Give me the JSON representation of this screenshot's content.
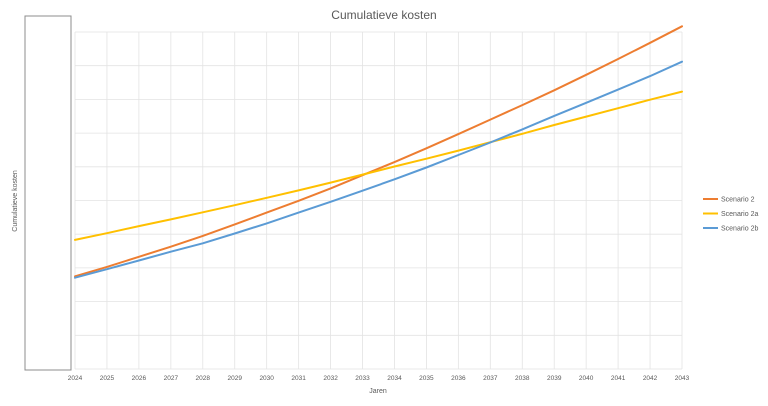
{
  "chart_data": {
    "type": "line",
    "title": "Cumulatieve kosten",
    "xlabel": "Jaren",
    "ylabel": "Cumulatieve kosten",
    "x": [
      2024,
      2025,
      2026,
      2027,
      2028,
      2029,
      2030,
      2031,
      2032,
      2033,
      2034,
      2035,
      2036,
      2037,
      2038,
      2039,
      2040,
      2041,
      2042,
      2043
    ],
    "ylim": [
      0,
      100
    ],
    "grid": true,
    "legend_position": "right",
    "series": [
      {
        "name": "Scenario 2",
        "color": "#ED7D31",
        "values": [
          27.5,
          30.3,
          33.3,
          36.3,
          39.5,
          42.9,
          46.4,
          49.9,
          53.6,
          57.5,
          61.4,
          65.5,
          69.7,
          74.0,
          78.3,
          82.7,
          87.3,
          92.0,
          96.8,
          101.7
        ]
      },
      {
        "name": "Scenario 2a",
        "color": "#FFC000",
        "values": [
          38.3,
          40.3,
          42.4,
          44.4,
          46.5,
          48.6,
          50.8,
          53.0,
          55.3,
          57.7,
          60.1,
          62.4,
          64.8,
          67.3,
          69.8,
          72.4,
          74.9,
          77.4,
          79.9,
          82.3
        ]
      },
      {
        "name": "Scenario 2b",
        "color": "#5B9BD5",
        "values": [
          27.1,
          29.6,
          32.2,
          34.8,
          37.3,
          40.2,
          43.2,
          46.4,
          49.6,
          52.9,
          56.3,
          59.8,
          63.5,
          67.2,
          71.1,
          75.1,
          79.0,
          82.9,
          86.9,
          91.2
        ]
      }
    ]
  }
}
